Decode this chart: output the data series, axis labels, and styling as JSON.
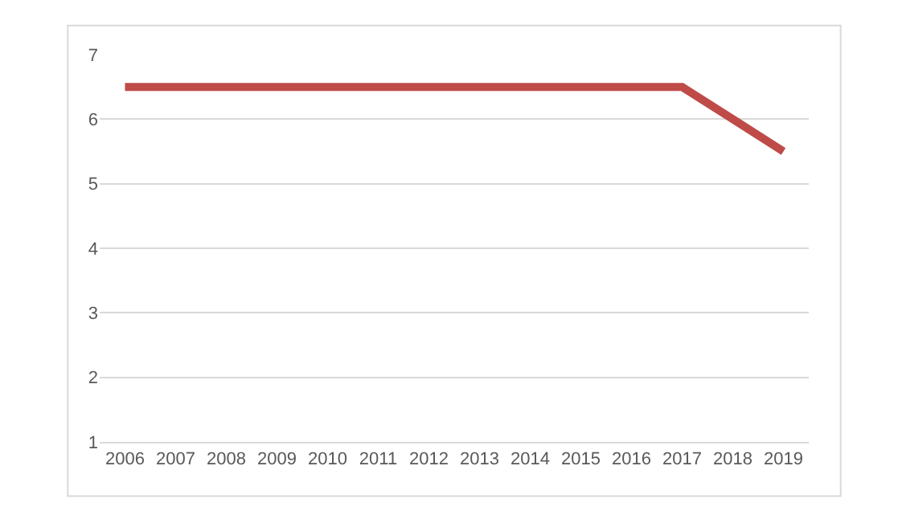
{
  "chart_data": {
    "type": "line",
    "categories": [
      "2006",
      "2007",
      "2008",
      "2009",
      "2010",
      "2011",
      "2012",
      "2013",
      "2014",
      "2015",
      "2016",
      "2017",
      "2018",
      "2019"
    ],
    "series": [
      {
        "color": "#be4b48",
        "values": [
          6.5,
          6.5,
          6.5,
          6.5,
          6.5,
          6.5,
          6.5,
          6.5,
          6.5,
          6.5,
          6.5,
          6.5,
          6.0,
          5.5
        ]
      }
    ],
    "ylim": [
      1,
      7
    ],
    "yticks": [
      1,
      2,
      3,
      4,
      5,
      6,
      7
    ],
    "grid": "y",
    "marker": "none",
    "line_style": "solid"
  }
}
